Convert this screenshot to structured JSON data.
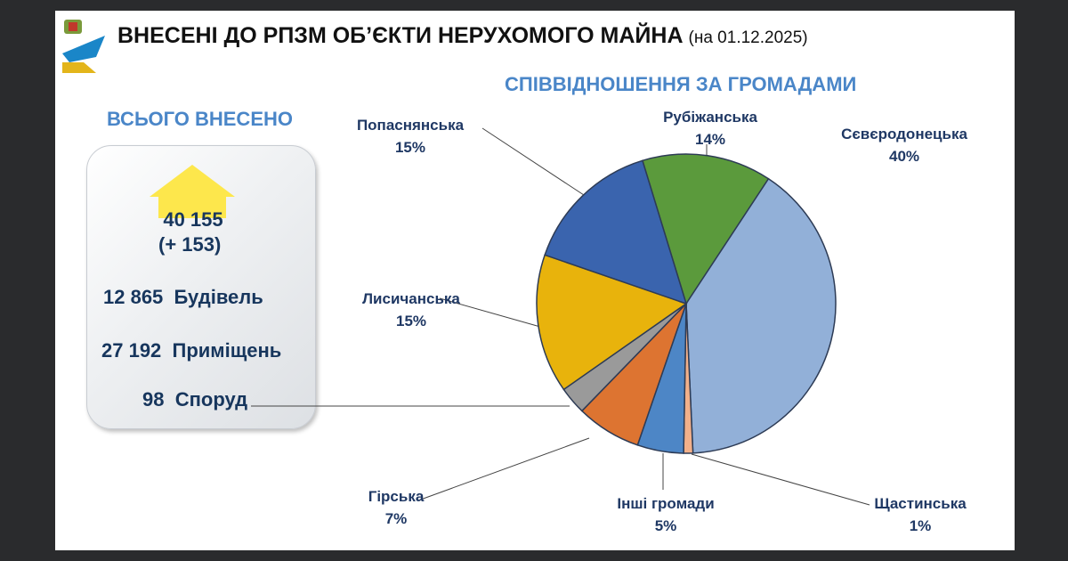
{
  "header": {
    "title": "ВНЕСЕНІ ДО РПЗМ ОБ’ЄКТИ НЕРУХОМОГО МАЙНА",
    "date": "(на 01.12.2025)"
  },
  "summary": {
    "heading": "ВСЬОГО ВНЕСЕНО",
    "total": "40 155",
    "delta": "(+ 153)",
    "rows": [
      {
        "value": "12 865",
        "label": "Будівель"
      },
      {
        "value": "27 192",
        "label": "Приміщень"
      },
      {
        "value": "98",
        "label": "Споруд"
      }
    ]
  },
  "chart_data": {
    "type": "pie",
    "title": "СПІВВІДНОШЕННЯ ЗА ГРОМАДАМИ",
    "slices": [
      {
        "name": "Рубіжанська",
        "value": 14,
        "label": "14%",
        "color": "#5b9a3c"
      },
      {
        "name": "Сєвєродонецька",
        "value": 40,
        "label": "40%",
        "color": "#92b0d8"
      },
      {
        "name": "Щастинська",
        "value": 1,
        "label": "1%",
        "color": "#f2b08a"
      },
      {
        "name": "Інші громади",
        "value": 5,
        "label": "5%",
        "color": "#4d86c6"
      },
      {
        "name": "Гірська",
        "value": 7,
        "label": "7%",
        "color": "#dd7431"
      },
      {
        "name": "",
        "value": 3,
        "label": "",
        "color": "#9a9a9a"
      },
      {
        "name": "Лисичанська",
        "value": 15,
        "label": "15%",
        "color": "#e8b30c"
      },
      {
        "name": "Попаснянська",
        "value": 15,
        "label": "15%",
        "color": "#3a64ae"
      }
    ]
  }
}
